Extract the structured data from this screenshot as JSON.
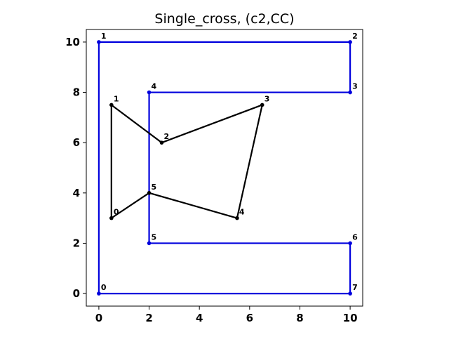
{
  "chart_data": {
    "type": "line",
    "title": "Single_cross, (c2,CC)",
    "xlabel": "",
    "ylabel": "",
    "xlim": [
      -0.5,
      10.5
    ],
    "ylim": [
      -0.5,
      10.5
    ],
    "xticks": [
      0,
      2,
      4,
      6,
      8,
      10
    ],
    "yticks": [
      0,
      2,
      4,
      6,
      8,
      10
    ],
    "grid": false,
    "series": [
      {
        "color": "#0000dd",
        "closed": true,
        "points": [
          {
            "label": "0",
            "x": 0,
            "y": 0
          },
          {
            "label": "1",
            "x": 0,
            "y": 10
          },
          {
            "label": "2",
            "x": 10,
            "y": 10
          },
          {
            "label": "3",
            "x": 10,
            "y": 8
          },
          {
            "label": "4",
            "x": 2,
            "y": 8
          },
          {
            "label": "5",
            "x": 2,
            "y": 2
          },
          {
            "label": "6",
            "x": 10,
            "y": 2
          },
          {
            "label": "7",
            "x": 10,
            "y": 0
          }
        ]
      },
      {
        "color": "#000000",
        "closed": true,
        "points": [
          {
            "label": "0",
            "x": 0.5,
            "y": 3
          },
          {
            "label": "1",
            "x": 0.5,
            "y": 7.5
          },
          {
            "label": "2",
            "x": 2.5,
            "y": 6
          },
          {
            "label": "3",
            "x": 6.5,
            "y": 7.5
          },
          {
            "label": "4",
            "x": 5.5,
            "y": 3
          },
          {
            "label": "5",
            "x": 2,
            "y": 4
          }
        ]
      }
    ]
  }
}
